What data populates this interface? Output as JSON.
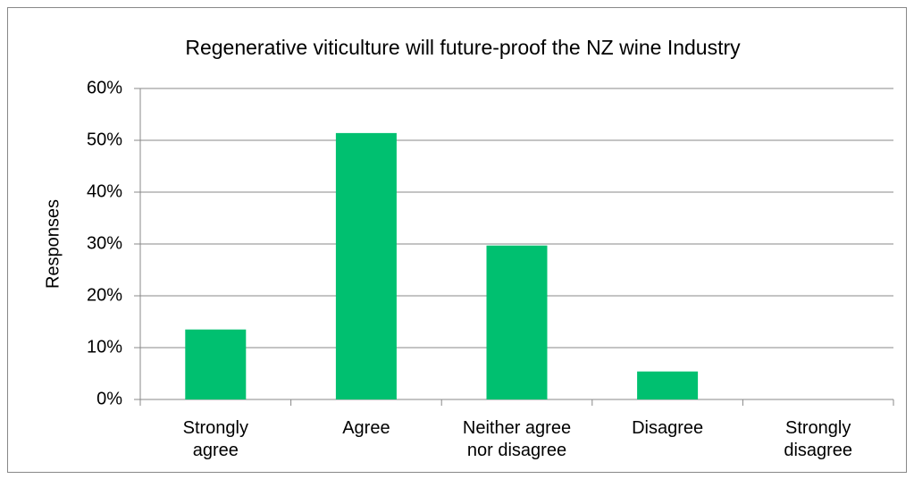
{
  "chart_data": {
    "type": "bar",
    "title": "Regenerative viticulture will future-proof the NZ wine Industry",
    "y_axis_label": "Responses",
    "categories": [
      "Strongly\nagree",
      "Agree",
      "Neither agree\nnor disagree",
      "Disagree",
      "Strongly\ndisagree"
    ],
    "values": [
      13.5,
      51.4,
      29.7,
      5.4,
      0
    ],
    "color": "#00c070",
    "ylim": [
      0,
      60
    ],
    "yticks": [
      {
        "value": 0,
        "label": "0%"
      },
      {
        "value": 10,
        "label": "10%"
      },
      {
        "value": 20,
        "label": "20%"
      },
      {
        "value": 30,
        "label": "30%"
      },
      {
        "value": 40,
        "label": "40%"
      },
      {
        "value": 50,
        "label": "50%"
      },
      {
        "value": 60,
        "label": "60%"
      }
    ],
    "grid": true
  }
}
